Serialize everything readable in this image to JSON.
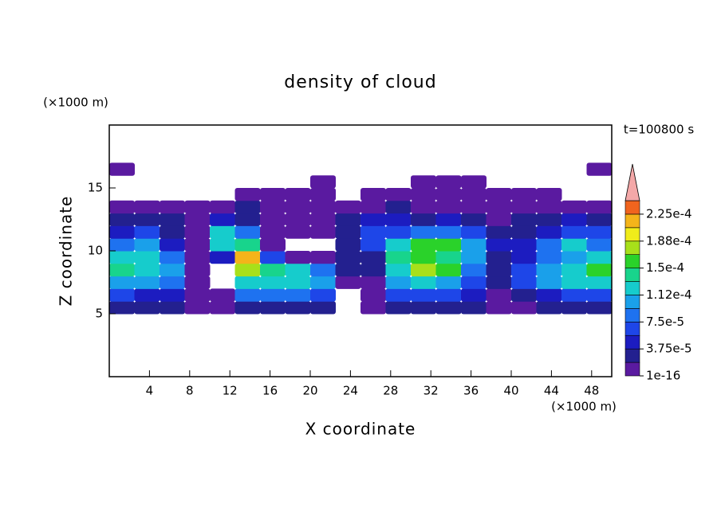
{
  "chart_data": {
    "type": "contour",
    "title": "density of cloud",
    "x_label": "X coordinate",
    "y_label": "Z coordinate",
    "x_unit": "(×1000 m)",
    "y_unit": "(×1000 m)",
    "time_label": "t=100800 s",
    "xlim": [
      0,
      50
    ],
    "ylim": [
      0,
      20
    ],
    "xticks": [
      4,
      8,
      12,
      16,
      20,
      24,
      28,
      32,
      36,
      40,
      44,
      48
    ],
    "yticks": [
      5,
      10,
      15
    ],
    "x": [
      1.25,
      3.75,
      6.25,
      8.75,
      11.25,
      13.75,
      16.25,
      18.75,
      21.25,
      23.75,
      26.25,
      28.75,
      31.25,
      33.75,
      36.25,
      38.75,
      41.25,
      43.75,
      46.25,
      48.75
    ],
    "z": [
      5.5,
      6.5,
      7.5,
      8.5,
      9.5,
      10.5,
      11.5,
      12.5,
      13.5,
      14.5,
      15.5,
      16.5
    ],
    "values": [
      [
        2e-05,
        2e-05,
        2e-05,
        1e-05,
        1e-06,
        3e-05,
        3e-05,
        3e-05,
        2e-05,
        null,
        1e-06,
        3e-05,
        3e-05,
        3e-05,
        2e-05,
        1e-05,
        1e-05,
        2e-05,
        2e-05,
        2e-05
      ],
      [
        6e-05,
        5e-05,
        4e-05,
        1e-05,
        1e-06,
        8e-05,
        8e-05,
        8e-05,
        6e-05,
        null,
        1e-05,
        7e-05,
        7e-05,
        6e-05,
        4e-05,
        1e-05,
        3e-05,
        5e-05,
        6e-05,
        7e-05
      ],
      [
        0.00011,
        0.0001,
        8e-05,
        1e-05,
        null,
        0.00013,
        0.00012,
        0.00012,
        0.0001,
        1e-05,
        1e-05,
        0.00011,
        0.00012,
        0.00011,
        6e-05,
        2e-05,
        6e-05,
        0.0001,
        0.00012,
        0.00013
      ],
      [
        0.00014,
        0.00013,
        0.0001,
        1e-05,
        null,
        0.00017,
        0.00014,
        0.00013,
        8e-05,
        3e-05,
        2e-05,
        0.00013,
        0.00017,
        0.00015,
        8e-05,
        3e-05,
        7e-05,
        0.00011,
        0.00012,
        0.00015
      ],
      [
        0.00012,
        0.00013,
        8e-05,
        1e-05,
        5e-05,
        0.00021,
        6e-05,
        1e-06,
        1e-06,
        3e-05,
        3e-05,
        0.00014,
        0.00016,
        0.00014,
        0.0001,
        3e-05,
        5e-05,
        8e-05,
        0.0001,
        0.00012
      ],
      [
        8e-05,
        0.0001,
        5e-05,
        1e-06,
        0.00012,
        0.00014,
        1e-06,
        null,
        null,
        2e-05,
        6e-05,
        0.00012,
        0.00015,
        0.00015,
        0.00011,
        4e-05,
        4e-05,
        8e-05,
        0.00012,
        9e-05
      ],
      [
        5e-05,
        6e-05,
        2e-05,
        1e-06,
        0.00012,
        8e-05,
        1e-06,
        1e-06,
        1e-06,
        3e-05,
        6e-05,
        7e-05,
        8e-05,
        8e-05,
        6e-05,
        3e-05,
        3e-05,
        5e-05,
        7e-05,
        6e-05
      ],
      [
        3e-05,
        3e-05,
        2e-05,
        1e-06,
        4e-05,
        3e-05,
        1e-06,
        1e-06,
        1e-06,
        2e-05,
        4e-05,
        4e-05,
        3e-05,
        4e-05,
        3e-05,
        1e-05,
        2e-05,
        3e-05,
        4e-05,
        3e-05
      ],
      [
        1e-06,
        1e-06,
        1e-06,
        1e-06,
        1e-06,
        2e-05,
        1e-06,
        1e-06,
        1e-06,
        1e-06,
        1e-06,
        2e-05,
        1e-05,
        1e-05,
        1e-06,
        1e-06,
        1e-06,
        1e-06,
        1e-06,
        1e-06
      ],
      [
        null,
        null,
        null,
        null,
        null,
        1e-06,
        1e-06,
        1e-06,
        1e-06,
        null,
        1e-06,
        1e-06,
        1e-06,
        1e-06,
        1e-06,
        1e-06,
        1e-06,
        1e-06,
        null,
        null
      ],
      [
        null,
        null,
        null,
        null,
        null,
        null,
        null,
        null,
        1e-06,
        null,
        null,
        null,
        1e-06,
        1e-06,
        1e-06,
        null,
        null,
        null,
        null,
        null
      ],
      [
        1e-06,
        null,
        null,
        null,
        null,
        null,
        null,
        null,
        null,
        null,
        null,
        null,
        null,
        null,
        null,
        null,
        null,
        null,
        null,
        1e-06
      ]
    ],
    "colorbar": {
      "levels": [
        1e-16,
        1.875e-05,
        3.75e-05,
        5.625e-05,
        7.5e-05,
        9.375e-05,
        0.0001125,
        0.00013125,
        0.00015,
        0.00016875,
        0.0001875,
        0.00020625,
        0.000225,
        0.00024375
      ],
      "colors": [
        "#5a1aa0",
        "#23208f",
        "#1c1cc0",
        "#1e46e8",
        "#1e72f0",
        "#1aa0ea",
        "#16cccc",
        "#18d48c",
        "#2ad22a",
        "#a8e01a",
        "#f0ec1a",
        "#f4b41a",
        "#f0641e"
      ],
      "extend_color": "#f4a8a8",
      "ticks": [
        {
          "value": 1e-16,
          "label": "1e-16"
        },
        {
          "value": 3.75e-05,
          "label": "3.75e-5"
        },
        {
          "value": 7.5e-05,
          "label": "7.5e-5"
        },
        {
          "value": 0.0001125,
          "label": "1.12e-4"
        },
        {
          "value": 0.00015,
          "label": "1.5e-4"
        },
        {
          "value": 0.0001875,
          "label": "1.88e-4"
        },
        {
          "value": 0.000225,
          "label": "2.25e-4"
        }
      ]
    }
  }
}
